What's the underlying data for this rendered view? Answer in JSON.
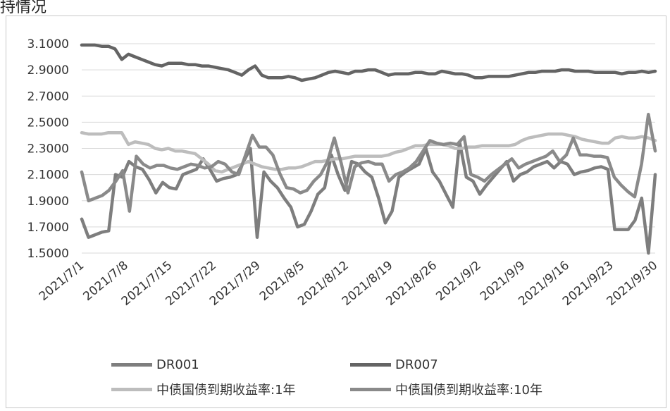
{
  "page": {
    "corner_title": "持情况"
  },
  "chart_data": {
    "type": "line",
    "title": "",
    "xlabel": "",
    "ylabel": "",
    "ylim": [
      1.5,
      3.1
    ],
    "y_ticks": [
      "3.1000",
      "2.9000",
      "2.7000",
      "2.5000",
      "2.3000",
      "2.1000",
      "1.9000",
      "1.7000",
      "1.5000"
    ],
    "x_ticks": [
      "2021/7/1",
      "2021/7/8",
      "2021/7/15",
      "2021/7/22",
      "2021/7/29",
      "2021/8/5",
      "2021/8/12",
      "2021/8/19",
      "2021/8/26",
      "2021/9/2",
      "2021/9/9",
      "2021/9/16",
      "2021/9/23",
      "2021/9/30"
    ],
    "grid": true,
    "legend": "bottom",
    "series": [
      {
        "name": "DR001",
        "color": "#7e7e7e",
        "values": [
          1.76,
          1.62,
          1.64,
          1.66,
          1.67,
          2.1,
          2.08,
          2.2,
          2.16,
          2.14,
          2.06,
          1.96,
          2.04,
          2.0,
          1.99,
          2.1,
          2.12,
          2.14,
          2.22,
          2.14,
          2.05,
          2.07,
          2.08,
          2.1,
          2.2,
          2.3,
          1.62,
          2.12,
          2.05,
          2.0,
          1.92,
          1.85,
          1.7,
          1.72,
          1.82,
          1.95,
          2.0,
          2.25,
          2.1,
          1.98,
          2.2,
          2.18,
          2.12,
          2.08,
          1.92,
          1.73,
          1.82,
          2.08,
          2.12,
          2.15,
          2.18,
          2.3,
          2.12,
          2.05,
          1.95,
          1.85,
          2.35,
          2.08,
          2.05,
          1.95,
          2.02,
          2.08,
          2.14,
          2.2,
          2.05,
          2.1,
          2.12,
          2.16,
          2.18,
          2.2,
          2.15,
          2.2,
          2.18,
          2.1,
          2.12,
          2.13,
          2.15,
          2.16,
          2.14,
          1.68,
          1.68,
          1.68,
          1.75,
          1.92,
          1.5,
          2.1
        ]
      },
      {
        "name": "DR007",
        "color": "#646464",
        "values": [
          3.09,
          3.09,
          3.09,
          3.08,
          3.08,
          3.06,
          2.98,
          3.02,
          3.0,
          2.98,
          2.96,
          2.94,
          2.93,
          2.95,
          2.95,
          2.95,
          2.94,
          2.94,
          2.93,
          2.93,
          2.92,
          2.91,
          2.9,
          2.88,
          2.86,
          2.9,
          2.93,
          2.86,
          2.84,
          2.84,
          2.84,
          2.85,
          2.84,
          2.82,
          2.83,
          2.84,
          2.86,
          2.88,
          2.89,
          2.88,
          2.87,
          2.89,
          2.89,
          2.9,
          2.9,
          2.88,
          2.86,
          2.87,
          2.87,
          2.87,
          2.88,
          2.88,
          2.87,
          2.87,
          2.89,
          2.88,
          2.87,
          2.87,
          2.86,
          2.84,
          2.84,
          2.85,
          2.85,
          2.85,
          2.85,
          2.86,
          2.87,
          2.88,
          2.88,
          2.89,
          2.89,
          2.89,
          2.9,
          2.9,
          2.89,
          2.89,
          2.89,
          2.88,
          2.88,
          2.88,
          2.88,
          2.87,
          2.88,
          2.88,
          2.89,
          2.88,
          2.89
        ]
      },
      {
        "name": "中债国债到期收益率:1年",
        "color": "#bdbdbd",
        "values": [
          2.42,
          2.41,
          2.41,
          2.41,
          2.42,
          2.42,
          2.42,
          2.33,
          2.35,
          2.34,
          2.33,
          2.3,
          2.29,
          2.3,
          2.28,
          2.28,
          2.27,
          2.26,
          2.22,
          2.18,
          2.13,
          2.12,
          2.14,
          2.16,
          2.18,
          2.2,
          2.18,
          2.16,
          2.15,
          2.14,
          2.14,
          2.15,
          2.15,
          2.16,
          2.18,
          2.2,
          2.2,
          2.21,
          2.22,
          2.22,
          2.23,
          2.24,
          2.24,
          2.24,
          2.24,
          2.24,
          2.25,
          2.27,
          2.28,
          2.3,
          2.32,
          2.32,
          2.33,
          2.33,
          2.33,
          2.32,
          2.3,
          2.3,
          2.31,
          2.31,
          2.32,
          2.32,
          2.32,
          2.32,
          2.32,
          2.33,
          2.36,
          2.38,
          2.39,
          2.4,
          2.41,
          2.41,
          2.41,
          2.4,
          2.39,
          2.37,
          2.36,
          2.35,
          2.34,
          2.34,
          2.38,
          2.39,
          2.38,
          2.38,
          2.39,
          2.38,
          2.36
        ]
      },
      {
        "name": "中债国债到期收益率:10年",
        "color": "#8a8a8a",
        "values": [
          2.12,
          1.9,
          1.92,
          1.94,
          1.98,
          2.05,
          2.13,
          1.82,
          2.24,
          2.18,
          2.15,
          2.17,
          2.17,
          2.15,
          2.14,
          2.16,
          2.18,
          2.17,
          2.15,
          2.16,
          2.2,
          2.18,
          2.12,
          2.1,
          2.25,
          2.4,
          2.31,
          2.31,
          2.25,
          2.11,
          2.0,
          1.99,
          1.96,
          1.98,
          2.05,
          2.1,
          2.2,
          2.38,
          2.19,
          1.96,
          2.16,
          2.19,
          2.2,
          2.18,
          2.18,
          2.05,
          2.1,
          2.12,
          2.15,
          2.2,
          2.28,
          2.36,
          2.34,
          2.33,
          2.34,
          2.33,
          2.39,
          2.1,
          2.08,
          2.05,
          2.1,
          2.14,
          2.18,
          2.22,
          2.15,
          2.18,
          2.2,
          2.22,
          2.24,
          2.28,
          2.2,
          2.25,
          2.38,
          2.25,
          2.25,
          2.24,
          2.24,
          2.23,
          2.08,
          2.02,
          1.97,
          1.93,
          2.18,
          2.56,
          2.28
        ]
      }
    ]
  }
}
